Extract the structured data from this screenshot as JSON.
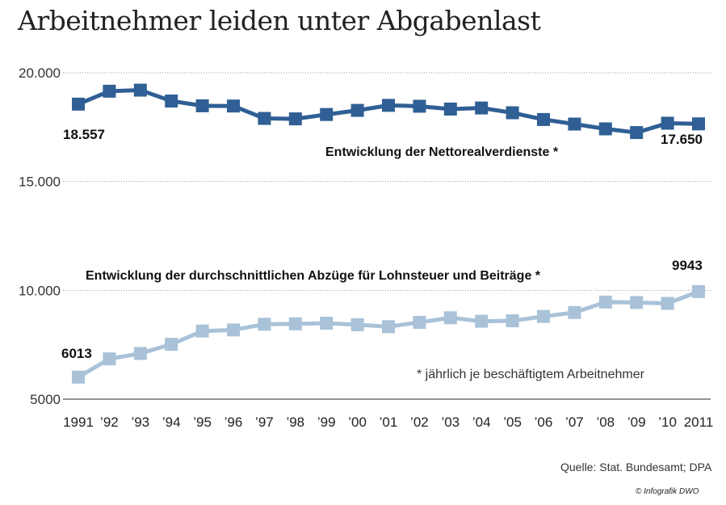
{
  "title": "Arbeitnehmer leiden unter Abgabenlast",
  "source": "Quelle: Stat. Bundesamt; DPA",
  "credit": "© Infografik DWO",
  "chart_data": {
    "type": "line",
    "title": "Arbeitnehmer leiden unter Abgabenlast",
    "categories": [
      "1991",
      "’92",
      "’93",
      "’94",
      "’95",
      "’96",
      "’97",
      "’98",
      "’99",
      "’00",
      "’01",
      "’02",
      "’03",
      "’04",
      "’05",
      "’06",
      "’07",
      "’08",
      "’09",
      "’10",
      "2011"
    ],
    "y_ticks": [
      "20.000",
      "15.000",
      "10.000",
      "5000"
    ],
    "y_tick_values": [
      20000,
      15000,
      10000,
      5000
    ],
    "ylim": [
      5000,
      20000
    ],
    "grid": true,
    "series": [
      {
        "name": "Entwicklung der Nettorealverdienste *",
        "color": "#2f5f94",
        "values": [
          18557,
          19150,
          19200,
          18700,
          18480,
          18470,
          17900,
          17880,
          18080,
          18270,
          18500,
          18460,
          18330,
          18380,
          18160,
          17850,
          17640,
          17420,
          17250,
          17680,
          17650
        ]
      },
      {
        "name": "Entwicklung der durchschnittlichen Abzüge für Lohnsteuer und Beiträge *",
        "color": "#a9c2d8",
        "values": [
          6013,
          6850,
          7100,
          7520,
          8130,
          8180,
          8440,
          8460,
          8490,
          8420,
          8330,
          8530,
          8740,
          8580,
          8600,
          8800,
          8980,
          9460,
          9440,
          9400,
          9943
        ]
      }
    ],
    "annotations": {
      "net_start": "18.557",
      "net_end": "17.650",
      "ded_start": "6013",
      "ded_end": "9943",
      "footnote": "* jährlich je beschäftigtem Arbeitnehmer"
    }
  }
}
